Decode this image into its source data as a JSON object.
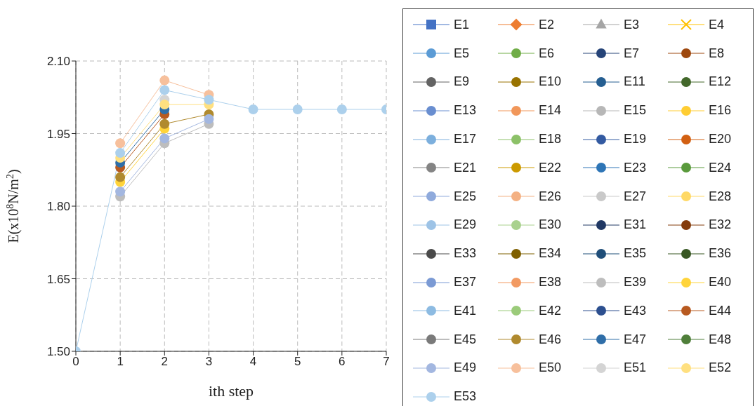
{
  "chart_data": {
    "type": "line",
    "xlabel": "ith step",
    "ylabel": "E(x10$^{8}$N/m$^{2}$)",
    "x": [
      0,
      1,
      2,
      3,
      4,
      5,
      6,
      7
    ],
    "xlim": [
      0,
      7
    ],
    "xticks": [
      0,
      1,
      2,
      3,
      4,
      5,
      6,
      7
    ],
    "ylim": [
      1.5,
      2.1
    ],
    "yticks": [
      {
        "value": 1.5,
        "label": "1.50"
      },
      {
        "value": 1.65,
        "label": "1.65"
      },
      {
        "value": 1.8,
        "label": "1.80"
      },
      {
        "value": 1.95,
        "label": "1.95"
      },
      {
        "value": 2.1,
        "label": "2.10"
      }
    ],
    "grid": true,
    "legend": "right",
    "line_style": "solid",
    "series": [
      {
        "name": "E1",
        "color": "#4472c4",
        "marker": "square",
        "values": [
          null,
          null,
          null,
          null,
          null,
          null,
          null,
          null
        ]
      },
      {
        "name": "E2",
        "color": "#ed7d31",
        "marker": "diamond",
        "values": [
          null,
          null,
          null,
          null,
          null,
          null,
          null,
          null
        ]
      },
      {
        "name": "E3",
        "color": "#a5a5a5",
        "marker": "triangle",
        "values": [
          null,
          null,
          null,
          null,
          null,
          null,
          null,
          null
        ]
      },
      {
        "name": "E4",
        "color": "#ffc000",
        "marker": "cross",
        "values": [
          null,
          null,
          null,
          null,
          null,
          null,
          null,
          null
        ]
      },
      {
        "name": "E5",
        "color": "#5b9bd5",
        "marker": "circle",
        "values": [
          null,
          null,
          null,
          null,
          null,
          null,
          null,
          null
        ]
      },
      {
        "name": "E6",
        "color": "#70ad47",
        "marker": "circle",
        "values": [
          null,
          null,
          null,
          null,
          null,
          null,
          null,
          null
        ]
      },
      {
        "name": "E7",
        "color": "#264478",
        "marker": "circle",
        "values": [
          null,
          null,
          null,
          null,
          null,
          null,
          null,
          null
        ]
      },
      {
        "name": "E8",
        "color": "#9e480e",
        "marker": "circle",
        "values": [
          null,
          null,
          null,
          null,
          null,
          null,
          null,
          null
        ]
      },
      {
        "name": "E9",
        "color": "#636363",
        "marker": "circle",
        "values": [
          null,
          null,
          null,
          null,
          null,
          null,
          null,
          null
        ]
      },
      {
        "name": "E10",
        "color": "#997300",
        "marker": "circle",
        "values": [
          null,
          null,
          null,
          null,
          null,
          null,
          null,
          null
        ]
      },
      {
        "name": "E11",
        "color": "#255e91",
        "marker": "circle",
        "values": [
          null,
          null,
          null,
          null,
          null,
          null,
          null,
          null
        ]
      },
      {
        "name": "E12",
        "color": "#43682b",
        "marker": "circle",
        "values": [
          null,
          null,
          null,
          null,
          null,
          null,
          null,
          null
        ]
      },
      {
        "name": "E13",
        "color": "#698ed0",
        "marker": "circle",
        "values": [
          null,
          null,
          null,
          null,
          null,
          null,
          null,
          null
        ]
      },
      {
        "name": "E14",
        "color": "#f1975a",
        "marker": "circle",
        "values": [
          null,
          null,
          null,
          null,
          null,
          null,
          null,
          null
        ]
      },
      {
        "name": "E15",
        "color": "#b7b7b7",
        "marker": "circle",
        "values": [
          null,
          null,
          null,
          null,
          null,
          null,
          null,
          null
        ]
      },
      {
        "name": "E16",
        "color": "#ffcd33",
        "marker": "circle",
        "values": [
          null,
          null,
          null,
          null,
          null,
          null,
          null,
          null
        ]
      },
      {
        "name": "E17",
        "color": "#7cafdd",
        "marker": "circle",
        "values": [
          null,
          null,
          null,
          null,
          null,
          null,
          null,
          null
        ]
      },
      {
        "name": "E18",
        "color": "#8cc168",
        "marker": "circle",
        "values": [
          null,
          null,
          null,
          null,
          null,
          null,
          null,
          null
        ]
      },
      {
        "name": "E19",
        "color": "#335aa1",
        "marker": "circle",
        "values": [
          null,
          null,
          null,
          null,
          null,
          null,
          null,
          null
        ]
      },
      {
        "name": "E20",
        "color": "#d26012",
        "marker": "circle",
        "values": [
          null,
          null,
          null,
          null,
          null,
          null,
          null,
          null
        ]
      },
      {
        "name": "E21",
        "color": "#848484",
        "marker": "circle",
        "values": [
          null,
          null,
          null,
          null,
          null,
          null,
          null,
          null
        ]
      },
      {
        "name": "E22",
        "color": "#cc9a00",
        "marker": "circle",
        "values": [
          null,
          null,
          null,
          null,
          null,
          null,
          null,
          null
        ]
      },
      {
        "name": "E23",
        "color": "#2e75b6",
        "marker": "circle",
        "values": [
          null,
          null,
          null,
          null,
          null,
          null,
          null,
          null
        ]
      },
      {
        "name": "E24",
        "color": "#5a9a3c",
        "marker": "circle",
        "values": [
          null,
          null,
          null,
          null,
          null,
          null,
          null,
          null
        ]
      },
      {
        "name": "E25",
        "color": "#8faadc",
        "marker": "circle",
        "values": [
          null,
          null,
          null,
          null,
          null,
          null,
          null,
          null
        ]
      },
      {
        "name": "E26",
        "color": "#f4b183",
        "marker": "circle",
        "values": [
          null,
          null,
          null,
          null,
          null,
          null,
          null,
          null
        ]
      },
      {
        "name": "E27",
        "color": "#c9c9c9",
        "marker": "circle",
        "values": [
          null,
          null,
          null,
          null,
          null,
          null,
          null,
          null
        ]
      },
      {
        "name": "E28",
        "color": "#ffd966",
        "marker": "circle",
        "values": [
          null,
          null,
          null,
          null,
          null,
          null,
          null,
          null
        ]
      },
      {
        "name": "E29",
        "color": "#9dc3e6",
        "marker": "circle",
        "values": [
          null,
          null,
          null,
          null,
          null,
          null,
          null,
          null
        ]
      },
      {
        "name": "E30",
        "color": "#a9d18e",
        "marker": "circle",
        "values": [
          null,
          null,
          null,
          null,
          null,
          null,
          null,
          null
        ]
      },
      {
        "name": "E31",
        "color": "#203864",
        "marker": "circle",
        "values": [
          null,
          null,
          null,
          null,
          null,
          null,
          null,
          null
        ]
      },
      {
        "name": "E32",
        "color": "#843c0c",
        "marker": "circle",
        "values": [
          null,
          null,
          null,
          null,
          null,
          null,
          null,
          null
        ]
      },
      {
        "name": "E33",
        "color": "#4a4a4a",
        "marker": "circle",
        "values": [
          null,
          null,
          null,
          null,
          null,
          null,
          null,
          null
        ]
      },
      {
        "name": "E34",
        "color": "#7f6000",
        "marker": "circle",
        "values": [
          null,
          null,
          null,
          null,
          null,
          null,
          null,
          null
        ]
      },
      {
        "name": "E35",
        "color": "#1f4e79",
        "marker": "circle",
        "values": [
          null,
          null,
          null,
          null,
          null,
          null,
          null,
          null
        ]
      },
      {
        "name": "E36",
        "color": "#385723",
        "marker": "circle",
        "values": [
          null,
          null,
          null,
          null,
          null,
          null,
          null,
          null
        ]
      },
      {
        "name": "E37",
        "color": "#7b9ad4",
        "marker": "circle",
        "values": [
          null,
          null,
          null,
          null,
          null,
          null,
          null,
          null
        ]
      },
      {
        "name": "E38",
        "color": "#f29a62",
        "marker": "circle",
        "values": [
          null,
          null,
          null,
          null,
          null,
          null,
          null,
          null
        ]
      },
      {
        "name": "E39",
        "color": "#bdbdbd",
        "marker": "circle",
        "values": [
          null,
          1.82,
          1.93,
          1.97,
          null,
          null,
          null,
          null
        ]
      },
      {
        "name": "E40",
        "color": "#ffd43b",
        "marker": "circle",
        "values": [
          null,
          1.85,
          1.96,
          null,
          null,
          null,
          null,
          null
        ]
      },
      {
        "name": "E41",
        "color": "#8dbbe2",
        "marker": "circle",
        "values": [
          null,
          null,
          null,
          null,
          null,
          null,
          null,
          null
        ]
      },
      {
        "name": "E42",
        "color": "#9bcb7a",
        "marker": "circle",
        "values": [
          null,
          null,
          null,
          null,
          null,
          null,
          null,
          null
        ]
      },
      {
        "name": "E43",
        "color": "#2c4f8f",
        "marker": "circle",
        "values": [
          null,
          null,
          null,
          null,
          null,
          null,
          null,
          null
        ]
      },
      {
        "name": "E44",
        "color": "#b85a20",
        "marker": "circle",
        "values": [
          null,
          1.88,
          1.99,
          null,
          null,
          null,
          null,
          null
        ]
      },
      {
        "name": "E45",
        "color": "#7a7a7a",
        "marker": "circle",
        "values": [
          null,
          null,
          null,
          null,
          null,
          null,
          null,
          null
        ]
      },
      {
        "name": "E46",
        "color": "#b08a2e",
        "marker": "circle",
        "values": [
          null,
          1.86,
          1.97,
          1.99,
          null,
          null,
          null,
          null
        ]
      },
      {
        "name": "E47",
        "color": "#2f6ea8",
        "marker": "circle",
        "values": [
          null,
          1.89,
          2.0,
          null,
          null,
          null,
          null,
          null
        ]
      },
      {
        "name": "E48",
        "color": "#4f7f3a",
        "marker": "circle",
        "values": [
          null,
          null,
          null,
          null,
          null,
          null,
          null,
          null
        ]
      },
      {
        "name": "E49",
        "color": "#a3b7e0",
        "marker": "circle",
        "values": [
          null,
          1.83,
          1.94,
          1.98,
          null,
          null,
          null,
          null
        ]
      },
      {
        "name": "E50",
        "color": "#f7c09c",
        "marker": "circle",
        "values": [
          null,
          1.93,
          2.06,
          2.03,
          null,
          null,
          null,
          null
        ]
      },
      {
        "name": "E51",
        "color": "#d4d4d4",
        "marker": "circle",
        "values": [
          null,
          null,
          2.02,
          null,
          null,
          null,
          null,
          null
        ]
      },
      {
        "name": "E52",
        "color": "#ffe080",
        "marker": "circle",
        "values": [
          null,
          1.9,
          2.01,
          2.01,
          null,
          null,
          null,
          null
        ]
      },
      {
        "name": "E53",
        "color": "#acd0ec",
        "marker": "circle",
        "values": [
          1.5,
          1.91,
          2.04,
          2.02,
          2.0,
          2.0,
          2.0,
          2.0
        ]
      }
    ]
  }
}
